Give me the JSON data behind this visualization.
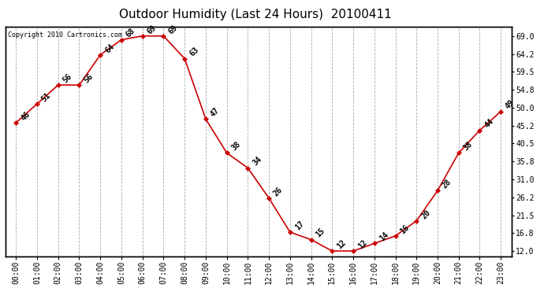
{
  "title": "Outdoor Humidity (Last 24 Hours)  20100411",
  "copyright_text": "Copyright 2010 Cartronics.com",
  "hours": [
    0,
    1,
    2,
    3,
    4,
    5,
    6,
    7,
    8,
    9,
    10,
    11,
    12,
    13,
    14,
    15,
    16,
    17,
    18,
    19,
    20,
    21,
    22,
    23
  ],
  "values": [
    46,
    51,
    56,
    56,
    64,
    68,
    69,
    69,
    63,
    47,
    38,
    34,
    26,
    17,
    15,
    12,
    12,
    14,
    16,
    20,
    28,
    38,
    44,
    49
  ],
  "x_labels": [
    "00:00",
    "01:00",
    "02:00",
    "03:00",
    "04:00",
    "05:00",
    "06:00",
    "07:00",
    "08:00",
    "09:00",
    "10:00",
    "11:00",
    "12:00",
    "13:00",
    "14:00",
    "15:00",
    "16:00",
    "17:00",
    "18:00",
    "19:00",
    "20:00",
    "21:00",
    "22:00",
    "23:00"
  ],
  "y_ticks": [
    12.0,
    16.8,
    21.5,
    26.2,
    31.0,
    35.8,
    40.5,
    45.2,
    50.0,
    54.8,
    59.5,
    64.2,
    69.0
  ],
  "ylim": [
    10.5,
    71.5
  ],
  "xlim": [
    -0.5,
    23.5
  ],
  "line_color": "#cc0000",
  "marker_color": "#cc0000",
  "grid_color": "#aaaaaa",
  "bg_color": "#ffffff",
  "title_fontsize": 11,
  "label_fontsize": 7,
  "annotation_fontsize": 7
}
